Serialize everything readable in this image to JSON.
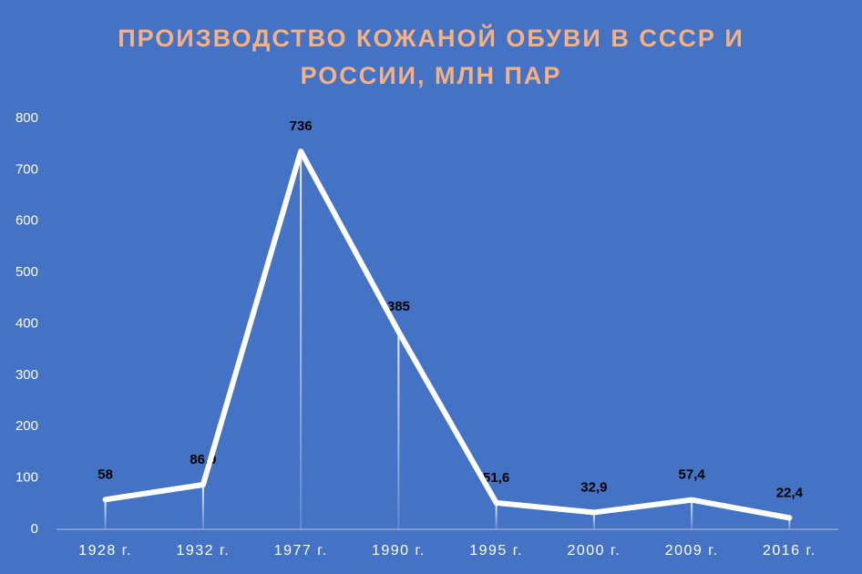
{
  "chart_data": {
    "type": "line",
    "title": "ПРОИЗВОДСТВО КОЖАНОЙ ОБУВИ В СССР И РОССИИ, МЛН ПАР",
    "categories": [
      "1928 г.",
      "1932 г.",
      "1977 г.",
      "1990 г.",
      "1995 г.",
      "2000 г.",
      "2009 г.",
      "2016 г."
    ],
    "values": [
      58,
      86.9,
      736,
      385,
      51.6,
      32.9,
      57.4,
      22.4
    ],
    "value_labels": [
      "58",
      "86,9",
      "736",
      "385",
      "51,6",
      "32,9",
      "57,4",
      "22,4"
    ],
    "color": "#ffffff",
    "ylim": [
      0,
      800
    ],
    "yticks": [
      0,
      100,
      200,
      300,
      400,
      500,
      600,
      700,
      800
    ],
    "grid": false
  }
}
